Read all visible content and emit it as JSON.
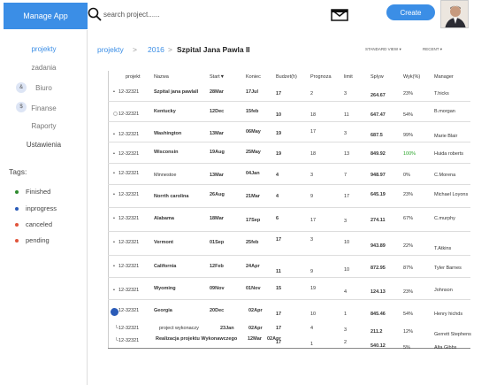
{
  "app": {
    "title": "Manage App"
  },
  "search": {
    "placeholder": "search project......"
  },
  "header": {
    "create_label": "Create"
  },
  "sidebar": {
    "items": [
      {
        "label": "projekty"
      },
      {
        "label": "zadania"
      },
      {
        "label": "Biuro",
        "badge": "&"
      },
      {
        "label": "Finanse",
        "badge": "$"
      },
      {
        "label": "Raporty"
      },
      {
        "label": "Ustawienia"
      }
    ],
    "tags_title": "Tags:",
    "tags": [
      {
        "label": "Finished",
        "color": "#2e8b2e"
      },
      {
        "label": "inprogress",
        "color": "#2a5bb8"
      },
      {
        "label": "canceled",
        "color": "#e0553c"
      },
      {
        "label": "pending",
        "color": "#e0553c"
      }
    ]
  },
  "breadcrumb": {
    "root": "projekty",
    "sep": ">",
    "year": "2016",
    "current": "Szpital Jana Pawla  II"
  },
  "view": {
    "standard": "STANDARD VIEW",
    "recent": "RECENT"
  },
  "table": {
    "headers": [
      "projekt",
      "Nazwa",
      "Start▼",
      "Koniec",
      "Budzet(h)",
      "Prognoza",
      "limit",
      "Splyw",
      "Wyk(%)",
      "Manager"
    ],
    "rows": [
      [
        "12-32321",
        "Szpital jana pawlall",
        "28Mar",
        "17Jul",
        "17",
        "2",
        "3",
        "264.67",
        "23%",
        "T.hicks"
      ],
      [
        "12-32321",
        "Kentucky",
        "12Dec",
        "15feb",
        "10",
        "18",
        "11",
        "647.47",
        "54%",
        "B.morgan"
      ],
      [
        "12-32321",
        "Washington",
        "13Mar",
        "06May",
        "19",
        "17",
        "3",
        "687.5",
        "99%",
        "Marie Blair"
      ],
      [
        "12-32321",
        "Wisconsin",
        "19Aug",
        "25May",
        "19",
        "18",
        "13",
        "849.92",
        "100%",
        "Huida roberts"
      ],
      [
        "12-32321",
        "Minnestoe",
        "13Mar",
        "04Jan",
        "4",
        "3",
        "7",
        "948.97",
        "0%",
        "C.Morena"
      ],
      [
        "12-32321",
        "Norrth carolina",
        "26Aug",
        "21Mar",
        "4",
        "9",
        "17",
        "645.19",
        "23%",
        "Michael Loyons"
      ],
      [
        "12-32321",
        "Alabama",
        "18Mar",
        "17Sep",
        "6",
        "17",
        "3",
        "274.11",
        "67%",
        "C.murphy"
      ],
      [
        "12-32321",
        "Vermont",
        "01Sep",
        "25feb",
        "17",
        "3",
        "10",
        "943.89",
        "22%",
        "T.Atkins"
      ],
      [
        "12-32321",
        "California",
        "12Feb",
        "24Apr",
        "11",
        "9",
        "10",
        "872.95",
        "87%",
        "Tyler Barnes"
      ],
      [
        "12-32321",
        "Wyoming",
        "09Nov",
        "01Nov",
        "15",
        "19",
        "4",
        "124.13",
        "23%",
        "Johnson"
      ],
      [
        "12-32321",
        "Georgia",
        "20Dec",
        "02Apr",
        "17",
        "10",
        "1",
        "845.46",
        "54%",
        "Henry hichds"
      ],
      [
        "12-32321",
        "project wykonaczy",
        "23Jan",
        "02Apr",
        "17",
        "4",
        "3",
        "211.2",
        "12%",
        "Gerrett Stephens"
      ],
      [
        "12-32321",
        "Realizacja projektu Wykonawczego",
        "12Mar",
        "02Apr",
        "17",
        "1",
        "2",
        "540.12",
        "5%",
        "Alta Gibbs"
      ]
    ]
  }
}
